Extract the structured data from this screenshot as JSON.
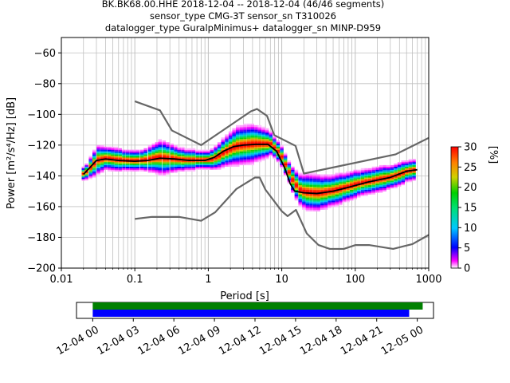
{
  "header": {
    "line1": "BK.BK68.00.HHE   2018-12-04 -- 2018-12-04  (46/46 segments)",
    "line2": "sensor_type CMG-3T sensor_sn T310026",
    "line3": "datalogger_type GuralpMinimus+ datalogger_sn MINP-D959"
  },
  "chart_data": [
    {
      "type": "heatmap",
      "xlabel": "Period [s]",
      "ylabel": "Power [m²/s⁴/Hz] [dB]",
      "xscale": "log",
      "xlim": [
        0.01,
        1000
      ],
      "ylim": [
        -200,
        -50
      ],
      "x_ticks": [
        "0.01",
        "0.1",
        "1",
        "10",
        "100",
        "1000"
      ],
      "y_ticks": [
        "−200",
        "−180",
        "−160",
        "−140",
        "−120",
        "−100",
        "−80",
        "−60"
      ],
      "grid": true,
      "colorbar": {
        "label": "[%]",
        "min": 0,
        "max": 30,
        "ticks": [
          "0",
          "5",
          "10",
          "15",
          "20",
          "25",
          "30"
        ]
      },
      "series": [
        {
          "role": "noise-model-upper",
          "color": "#666666",
          "points": [
            [
              0.1,
              -91.5
            ],
            [
              0.22,
              -97.4
            ],
            [
              0.32,
              -110.5
            ],
            [
              0.8,
              -120
            ],
            [
              3.8,
              -98
            ],
            [
              4.6,
              -96.5
            ],
            [
              6.3,
              -101
            ],
            [
              7.9,
              -113.5
            ],
            [
              15.4,
              -120.5
            ],
            [
              20,
              -138.5
            ],
            [
              354.8,
              -126
            ],
            [
              10000,
              -91.5
            ]
          ]
        },
        {
          "role": "noise-model-lower",
          "color": "#666666",
          "points": [
            [
              0.1,
              -168
            ],
            [
              0.17,
              -166.7
            ],
            [
              0.4,
              -166.7
            ],
            [
              0.8,
              -169.2
            ],
            [
              1.24,
              -163.7
            ],
            [
              2.4,
              -148.6
            ],
            [
              4.3,
              -141.1
            ],
            [
              5,
              -141.1
            ],
            [
              6,
              -149
            ],
            [
              10,
              -163
            ],
            [
              12,
              -166.2
            ],
            [
              15.6,
              -162.1
            ],
            [
              21.9,
              -177.5
            ],
            [
              31.6,
              -185
            ],
            [
              45,
              -187.5
            ],
            [
              70,
              -187.5
            ],
            [
              101,
              -185
            ],
            [
              154,
              -185
            ],
            [
              328,
              -187.5
            ],
            [
              600,
              -184.4
            ],
            [
              10000,
              -151.5
            ]
          ]
        },
        {
          "role": "mode",
          "color": "#000000",
          "points": [
            [
              0.02,
              -139
            ],
            [
              0.024,
              -135
            ],
            [
              0.03,
              -130
            ],
            [
              0.04,
              -129
            ],
            [
              0.06,
              -130
            ],
            [
              0.1,
              -130.5
            ],
            [
              0.15,
              -130
            ],
            [
              0.22,
              -128.5
            ],
            [
              0.35,
              -129
            ],
            [
              0.55,
              -130
            ],
            [
              0.9,
              -130
            ],
            [
              1.2,
              -128
            ],
            [
              1.6,
              -124
            ],
            [
              2.2,
              -121
            ],
            [
              3,
              -120
            ],
            [
              4.5,
              -119.5
            ],
            [
              6.5,
              -119.5
            ],
            [
              8.5,
              -124
            ],
            [
              11,
              -135
            ],
            [
              13,
              -145
            ],
            [
              15,
              -150
            ],
            [
              20,
              -151
            ],
            [
              30,
              -151.5
            ],
            [
              50,
              -150
            ],
            [
              80,
              -147.5
            ],
            [
              150,
              -144
            ],
            [
              300,
              -141
            ],
            [
              500,
              -137
            ],
            [
              700,
              -136
            ]
          ]
        }
      ],
      "density": {
        "x": [
          0.02,
          0.022,
          0.025,
          0.028,
          0.032,
          0.036,
          0.04,
          0.045,
          0.05,
          0.056,
          0.063,
          0.071,
          0.08,
          0.09,
          0.1,
          0.11,
          0.125,
          0.14,
          0.16,
          0.18,
          0.2,
          0.22,
          0.25,
          0.28,
          0.32,
          0.36,
          0.4,
          0.45,
          0.5,
          0.56,
          0.63,
          0.71,
          0.8,
          0.9,
          1,
          1.12,
          1.26,
          1.41,
          1.58,
          1.78,
          2,
          2.24,
          2.51,
          2.82,
          3.16,
          3.55,
          3.98,
          4.47,
          5.01,
          5.62,
          6.31,
          7.08,
          7.94,
          8.91,
          10,
          11.2,
          12.6,
          14.1,
          15.8,
          17.8,
          20,
          22.4,
          25.1,
          28.2,
          31.6,
          35.5,
          39.8,
          44.7,
          50.1,
          56.2,
          63.1,
          70.8,
          79.4,
          89.1,
          100,
          112,
          126,
          141,
          158,
          178,
          200,
          224,
          251,
          282,
          316,
          355,
          398,
          447,
          501,
          562,
          631
        ],
        "mode_db": [
          -139,
          -137.8,
          -135,
          -132.5,
          -130,
          -129.5,
          -129,
          -129.2,
          -129.5,
          -129.8,
          -130,
          -130.2,
          -130.3,
          -130.4,
          -130.5,
          -130.4,
          -130.2,
          -130,
          -129.5,
          -129,
          -128.7,
          -128.5,
          -128.7,
          -128.9,
          -129.1,
          -129.4,
          -129.7,
          -129.9,
          -130,
          -130,
          -130,
          -130,
          -130,
          -130,
          -130,
          -129.6,
          -128.6,
          -127.4,
          -125.6,
          -124.3,
          -123,
          -121.8,
          -121,
          -120.6,
          -120.3,
          -120,
          -119.7,
          -119.5,
          -119.5,
          -119.5,
          -119.5,
          -119.6,
          -122,
          -124.5,
          -128,
          -133,
          -138,
          -143,
          -146.5,
          -149.5,
          -150.5,
          -151,
          -151.2,
          -151.4,
          -151.5,
          -151.3,
          -150.9,
          -150.4,
          -150,
          -149.4,
          -148.8,
          -148.1,
          -147.5,
          -146.8,
          -146,
          -145.4,
          -144.8,
          -144.3,
          -144,
          -143.5,
          -142.9,
          -142.4,
          -142,
          -141.5,
          -141,
          -140.3,
          -139.4,
          -138.5,
          -137.5,
          -137,
          -136.6
        ],
        "spread_db": [
          2.5,
          3,
          4,
          5,
          5.5,
          5,
          4.5,
          4.5,
          4.5,
          4.5,
          4.5,
          4,
          4,
          4,
          4,
          4,
          4,
          4.5,
          5,
          5.5,
          6,
          6.5,
          6.5,
          6,
          5.5,
          5,
          4.5,
          4.5,
          4,
          4,
          4,
          3.5,
          3.5,
          3.5,
          3.5,
          4,
          4.5,
          5,
          5.5,
          6,
          6.5,
          7,
          7.5,
          7.5,
          7.5,
          7.5,
          7.5,
          7,
          6.5,
          6,
          5.5,
          4.5,
          4,
          4,
          4,
          4,
          4,
          5,
          5.5,
          6,
          6.5,
          7,
          7,
          7,
          7,
          6.5,
          6.5,
          6,
          6,
          6,
          6,
          5.5,
          5.5,
          5.5,
          5.5,
          5,
          5,
          5,
          5,
          5,
          5,
          5,
          5,
          4.5,
          4.5,
          4.5,
          4.5,
          4.5,
          4,
          4,
          4
        ]
      }
    },
    {
      "type": "timeline",
      "x_ticks": [
        "12-04 00",
        "12-04 03",
        "12-04 06",
        "12-04 09",
        "12-04 12",
        "12-04 15",
        "12-04 18",
        "12-04 21",
        "12-05 00"
      ],
      "xlim_hours": [
        -1.2,
        25.2
      ],
      "bars": [
        {
          "role": "data-available",
          "color": "#008000",
          "start_hours": 0,
          "end_hours": 24.4
        },
        {
          "role": "psd-segments",
          "color": "#0000ff",
          "start_hours": 0,
          "end_hours": 23.4
        }
      ]
    }
  ]
}
